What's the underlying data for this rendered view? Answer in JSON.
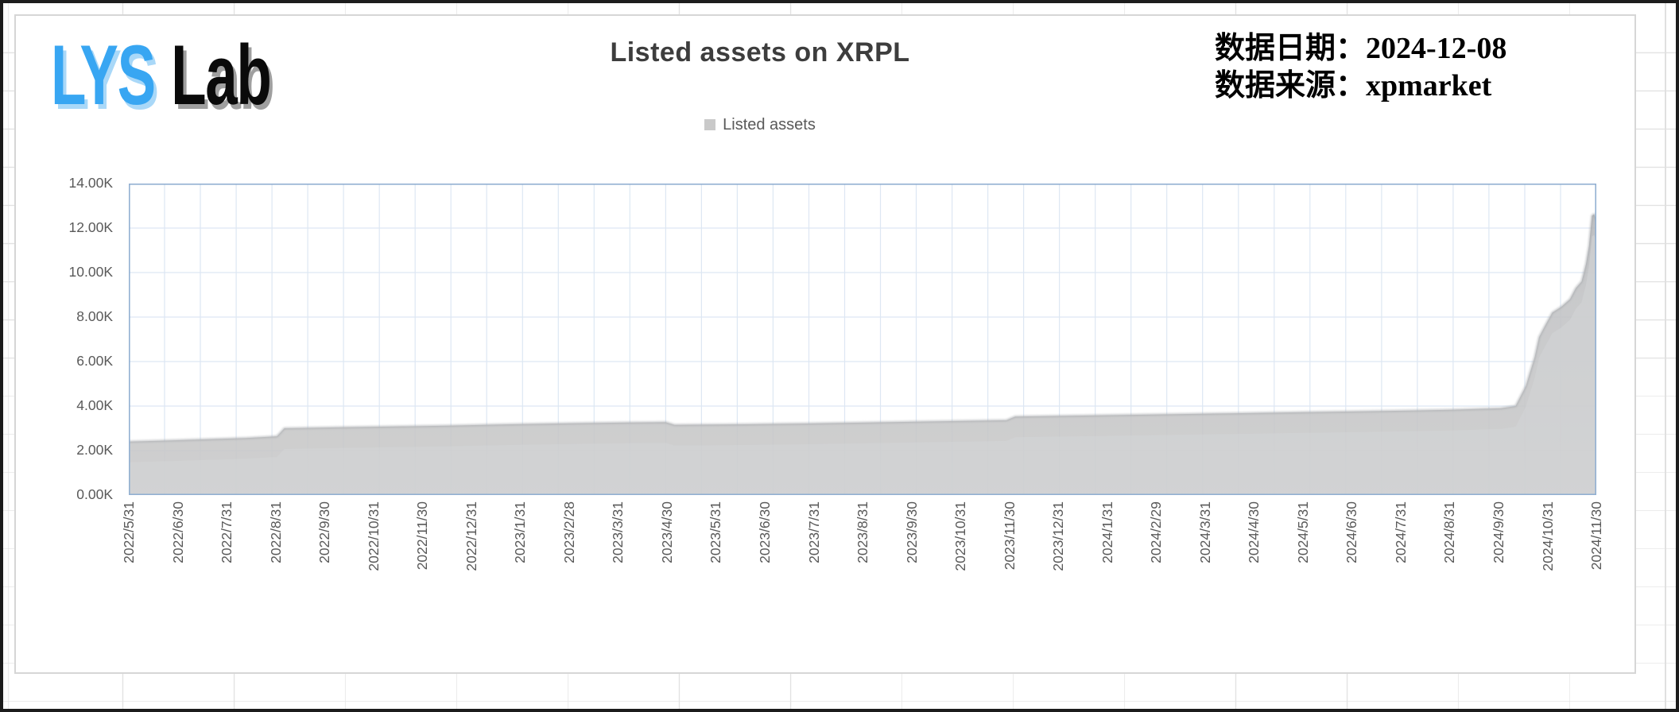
{
  "logo": {
    "text_blue": "LYS",
    "text_black": "Lab",
    "blue_color": "#38a6f2"
  },
  "header": {
    "date_label": "数据日期：",
    "date_value": "2024-12-08",
    "source_label": "数据来源：",
    "source_value": "xpmarket"
  },
  "chart_data": {
    "type": "area",
    "title": "Listed assets on XRPL",
    "series_name": "Listed assets",
    "legend_position": "top",
    "grid": true,
    "categories": [
      "2022/5/31",
      "2022/6/30",
      "2022/7/31",
      "2022/8/31",
      "2022/9/30",
      "2022/10/31",
      "2022/11/30",
      "2022/12/31",
      "2023/1/31",
      "2023/2/28",
      "2023/3/31",
      "2023/4/30",
      "2023/5/31",
      "2023/6/30",
      "2023/7/31",
      "2023/8/31",
      "2023/9/30",
      "2023/10/31",
      "2023/11/30",
      "2023/12/31",
      "2024/1/31",
      "2024/2/29",
      "2024/3/31",
      "2024/4/30",
      "2024/5/31",
      "2024/6/30",
      "2024/7/31",
      "2024/8/31",
      "2024/9/30",
      "2024/10/31",
      "2024/11/30"
    ],
    "values": [
      2400,
      2460,
      2520,
      2640,
      3000,
      3030,
      3060,
      3100,
      3150,
      3200,
      3250,
      3150,
      3180,
      3210,
      3250,
      3290,
      3330,
      3360,
      3400,
      3530,
      3560,
      3600,
      3640,
      3670,
      3700,
      3720,
      3750,
      3780,
      3900,
      7700,
      12370
    ],
    "ylim": [
      0,
      14000
    ],
    "ytick_step": 2000,
    "ytick_labels": [
      "0.00K",
      "2.00K",
      "4.00K",
      "6.00K",
      "8.00K",
      "10.00K",
      "12.00K",
      "14.00K"
    ],
    "vertical_gridline_intervals": 41,
    "traced_top_edge_frac_vs_thousands": [
      [
        0.0,
        2.4
      ],
      [
        0.02,
        2.44
      ],
      [
        0.05,
        2.5
      ],
      [
        0.08,
        2.56
      ],
      [
        0.101,
        2.64
      ],
      [
        0.106,
        3.0
      ],
      [
        0.14,
        3.04
      ],
      [
        0.18,
        3.08
      ],
      [
        0.22,
        3.12
      ],
      [
        0.26,
        3.18
      ],
      [
        0.3,
        3.22
      ],
      [
        0.34,
        3.26
      ],
      [
        0.366,
        3.27
      ],
      [
        0.372,
        3.15
      ],
      [
        0.42,
        3.18
      ],
      [
        0.47,
        3.22
      ],
      [
        0.52,
        3.28
      ],
      [
        0.56,
        3.32
      ],
      [
        0.598,
        3.36
      ],
      [
        0.604,
        3.53
      ],
      [
        0.65,
        3.57
      ],
      [
        0.7,
        3.62
      ],
      [
        0.75,
        3.67
      ],
      [
        0.8,
        3.72
      ],
      [
        0.85,
        3.77
      ],
      [
        0.9,
        3.83
      ],
      [
        0.935,
        3.9
      ],
      [
        0.945,
        4.0
      ],
      [
        0.952,
        4.9
      ],
      [
        0.958,
        6.2
      ],
      [
        0.961,
        7.1
      ],
      [
        0.965,
        7.6
      ],
      [
        0.97,
        8.2
      ],
      [
        0.976,
        8.45
      ],
      [
        0.982,
        8.8
      ],
      [
        0.986,
        9.3
      ],
      [
        0.99,
        9.6
      ],
      [
        0.993,
        10.4
      ],
      [
        0.995,
        11.2
      ],
      [
        0.997,
        12.55
      ],
      [
        0.9985,
        12.62
      ],
      [
        1.0,
        12.35
      ]
    ],
    "area_fill_top": "#b5b7ba",
    "area_fill_mid": "#c1c2c4",
    "area_fill_bottom": "#c9c9c9",
    "legend_swatch_color": "#c9c9c9",
    "gridline_color": "#dde7f3",
    "plot_border_color": "#92b0d2",
    "axis_text_color": "#595959"
  }
}
